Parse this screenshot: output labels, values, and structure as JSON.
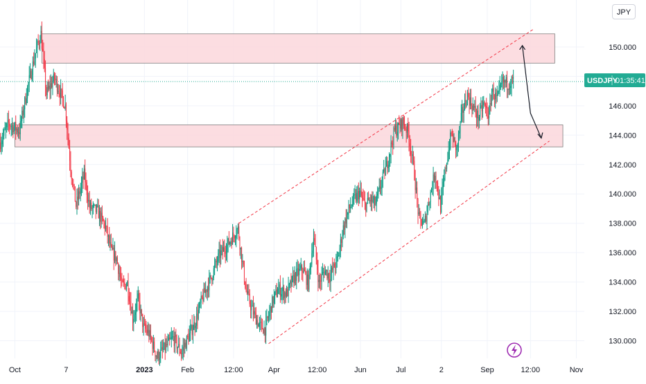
{
  "chart_data": {
    "type": "candlestick",
    "symbol": "USDJPY",
    "currency": "JPY",
    "countdown": "01:35:41",
    "last_price": 147.65,
    "ylim": [
      128.8,
      153.2
    ],
    "y_ticks": [
      130,
      132,
      134,
      136,
      138,
      140,
      142,
      144,
      146,
      148,
      150
    ],
    "y_tick_labels": [
      "130.000",
      "132.000",
      "134.000",
      "136.000",
      "138.000",
      "140.000",
      "142.000",
      "144.000",
      "146.000",
      "",
      "150.000"
    ],
    "x_ticks": [
      "Oct",
      "7",
      "2023",
      "Feb",
      "12:00",
      "Apr",
      "12:00",
      "Jun",
      "Jul",
      "2",
      "Sep",
      "12:00",
      "Nov"
    ],
    "bold_x_ticks": [
      "2023"
    ],
    "x_range_bars": 190,
    "x_tick_bars": [
      5,
      24,
      53,
      69,
      86,
      101,
      117,
      133,
      148,
      163,
      180,
      196,
      213
    ],
    "price_path": [
      [
        0,
        143.5
      ],
      [
        3,
        144.8
      ],
      [
        7,
        144.3
      ],
      [
        10,
        147.2
      ],
      [
        13,
        149.6
      ],
      [
        15,
        150.9
      ],
      [
        17,
        146.8
      ],
      [
        20,
        147.9
      ],
      [
        24,
        146.0
      ],
      [
        26,
        141.8
      ],
      [
        28,
        139.2
      ],
      [
        31,
        141.3
      ],
      [
        33,
        139.1
      ],
      [
        36,
        138.8
      ],
      [
        39,
        137.7
      ],
      [
        41,
        136.1
      ],
      [
        43,
        135.6
      ],
      [
        45,
        133.7
      ],
      [
        47,
        133.9
      ],
      [
        49,
        131.5
      ],
      [
        51,
        132.8
      ],
      [
        53,
        130.9
      ],
      [
        55,
        130.5
      ],
      [
        58,
        128.9
      ],
      [
        61,
        129.5
      ],
      [
        64,
        130.2
      ],
      [
        67,
        129.2
      ],
      [
        70,
        130.4
      ],
      [
        72,
        131.2
      ],
      [
        75,
        133.0
      ],
      [
        78,
        134.3
      ],
      [
        81,
        135.8
      ],
      [
        84,
        136.5
      ],
      [
        87,
        137.4
      ],
      [
        88,
        137.6
      ],
      [
        91,
        133.4
      ],
      [
        93,
        132.2
      ],
      [
        96,
        131.0
      ],
      [
        98,
        130.8
      ],
      [
        101,
        132.8
      ],
      [
        103,
        133.5
      ],
      [
        106,
        133.2
      ],
      [
        109,
        134.4
      ],
      [
        112,
        134.9
      ],
      [
        114,
        133.9
      ],
      [
        116,
        137.1
      ],
      [
        118,
        133.9
      ],
      [
        120,
        134.8
      ],
      [
        122,
        134.4
      ],
      [
        125,
        135.6
      ],
      [
        127,
        137.7
      ],
      [
        129,
        138.9
      ],
      [
        131,
        139.6
      ],
      [
        133,
        140.1
      ],
      [
        135,
        139.2
      ],
      [
        137,
        139.6
      ],
      [
        139,
        139.3
      ],
      [
        141,
        140.7
      ],
      [
        143,
        141.9
      ],
      [
        146,
        144.3
      ],
      [
        148,
        144.6
      ],
      [
        149,
        144.9
      ],
      [
        151,
        144.2
      ],
      [
        153,
        141.9
      ],
      [
        155,
        138.3
      ],
      [
        157,
        137.9
      ],
      [
        159,
        139.8
      ],
      [
        161,
        141.5
      ],
      [
        163,
        139.1
      ],
      [
        165,
        141.9
      ],
      [
        167,
        144.1
      ],
      [
        169,
        143.0
      ],
      [
        171,
        145.5
      ],
      [
        173,
        146.7
      ],
      [
        175,
        145.9
      ],
      [
        177,
        145.2
      ],
      [
        179,
        146.1
      ],
      [
        181,
        145.3
      ],
      [
        182,
        147.0
      ],
      [
        184,
        146.4
      ],
      [
        186,
        147.6
      ],
      [
        188,
        147.5
      ],
      [
        190,
        147.7
      ]
    ],
    "zones": [
      {
        "from_bar": 15,
        "to_bar": 205,
        "low": 148.9,
        "high": 150.9
      },
      {
        "from_bar": 5,
        "to_bar": 208,
        "low": 143.2,
        "high": 144.7
      }
    ],
    "channel": {
      "upper": {
        "from": [
          88,
          138.0
        ],
        "to": [
          197,
          151.2
        ]
      },
      "lower": {
        "from": [
          99,
          129.8
        ],
        "to": [
          203,
          143.6
        ]
      }
    },
    "projection_arrow": [
      [
        193,
        150.1
      ],
      [
        196,
        145.5
      ],
      [
        200,
        143.8
      ]
    ],
    "colors": {
      "up": "#089981",
      "down": "#f23645",
      "zone_fill": "#fcd7dc",
      "zone_stroke": "#7f7f7f",
      "channel": "#f23645",
      "price_tag": "#22ab94",
      "grid": "#f0f3fa",
      "text": "#131722",
      "lightning": "#9c27b0"
    }
  }
}
